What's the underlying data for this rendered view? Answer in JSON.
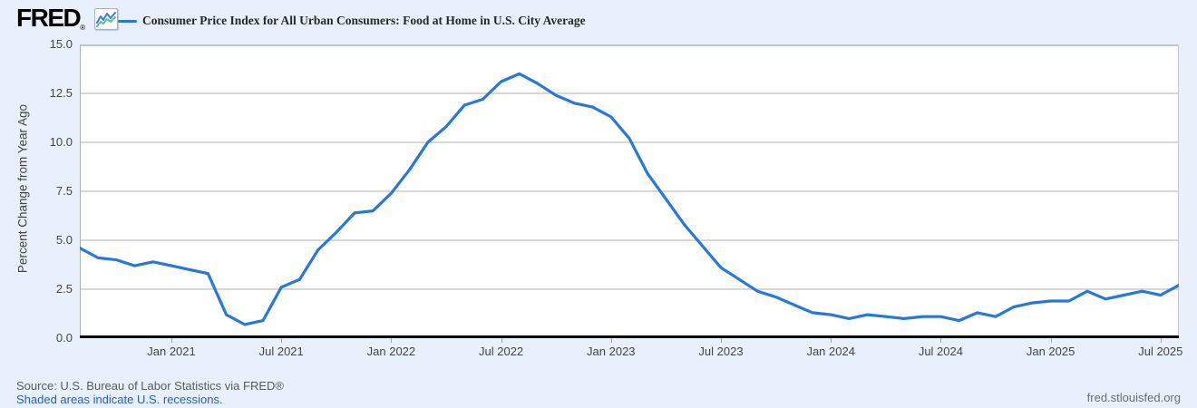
{
  "header": {
    "logo_text": "FRED",
    "logo_registered": "®",
    "legend": {
      "label": "Consumer Price Index for All Urban Consumers: Food at Home in U.S. City Average",
      "line_color": "#2878d9"
    }
  },
  "chart_data": {
    "type": "line",
    "title": "Consumer Price Index for All Urban Consumers: Food at Home in U.S. City Average",
    "ylabel": "Percent Change from Year Ago",
    "xlabel": "",
    "ylim": [
      0,
      15
    ],
    "y_ticks": [
      0.0,
      2.5,
      5.0,
      7.5,
      10.0,
      12.5,
      15.0
    ],
    "grid": true,
    "legend_position": "top-left",
    "frequency": "monthly",
    "x_start": "2020-08",
    "x_end": "2025-08",
    "x_range_months": 60,
    "x_ticks": [
      {
        "label": "Jan 2021",
        "month_index": 5
      },
      {
        "label": "Jul 2021",
        "month_index": 11
      },
      {
        "label": "Jan 2022",
        "month_index": 17
      },
      {
        "label": "Jul 2022",
        "month_index": 23
      },
      {
        "label": "Jan 2023",
        "month_index": 29
      },
      {
        "label": "Jul 2023",
        "month_index": 35
      },
      {
        "label": "Jan 2024",
        "month_index": 41
      },
      {
        "label": "Jul 2024",
        "month_index": 47
      },
      {
        "label": "Jan 2025",
        "month_index": 53
      },
      {
        "label": "Jul 2025",
        "month_index": 59
      }
    ],
    "series": [
      {
        "name": "Consumer Price Index for All Urban Consumers: Food at Home in U.S. City Average",
        "color": "#2878d9",
        "units": "Percent Change from Year Ago",
        "observations": [
          {
            "date": "2020-08",
            "value": 4.6
          },
          {
            "date": "2020-09",
            "value": 4.1
          },
          {
            "date": "2020-10",
            "value": 4.0
          },
          {
            "date": "2020-11",
            "value": 3.7
          },
          {
            "date": "2020-12",
            "value": 3.9
          },
          {
            "date": "2021-01",
            "value": 3.7
          },
          {
            "date": "2021-02",
            "value": 3.5
          },
          {
            "date": "2021-03",
            "value": 3.3
          },
          {
            "date": "2021-04",
            "value": 1.2
          },
          {
            "date": "2021-05",
            "value": 0.7
          },
          {
            "date": "2021-06",
            "value": 0.9
          },
          {
            "date": "2021-07",
            "value": 2.6
          },
          {
            "date": "2021-08",
            "value": 3.0
          },
          {
            "date": "2021-09",
            "value": 4.5
          },
          {
            "date": "2021-10",
            "value": 5.4
          },
          {
            "date": "2021-11",
            "value": 6.4
          },
          {
            "date": "2021-12",
            "value": 6.5
          },
          {
            "date": "2022-01",
            "value": 7.4
          },
          {
            "date": "2022-02",
            "value": 8.6
          },
          {
            "date": "2022-03",
            "value": 10.0
          },
          {
            "date": "2022-04",
            "value": 10.8
          },
          {
            "date": "2022-05",
            "value": 11.9
          },
          {
            "date": "2022-06",
            "value": 12.2
          },
          {
            "date": "2022-07",
            "value": 13.1
          },
          {
            "date": "2022-08",
            "value": 13.5
          },
          {
            "date": "2022-09",
            "value": 13.0
          },
          {
            "date": "2022-10",
            "value": 12.4
          },
          {
            "date": "2022-11",
            "value": 12.0
          },
          {
            "date": "2022-12",
            "value": 11.8
          },
          {
            "date": "2023-01",
            "value": 11.3
          },
          {
            "date": "2023-02",
            "value": 10.2
          },
          {
            "date": "2023-03",
            "value": 8.4
          },
          {
            "date": "2023-04",
            "value": 7.1
          },
          {
            "date": "2023-05",
            "value": 5.8
          },
          {
            "date": "2023-06",
            "value": 4.7
          },
          {
            "date": "2023-07",
            "value": 3.6
          },
          {
            "date": "2023-08",
            "value": 3.0
          },
          {
            "date": "2023-09",
            "value": 2.4
          },
          {
            "date": "2023-10",
            "value": 2.1
          },
          {
            "date": "2023-11",
            "value": 1.7
          },
          {
            "date": "2023-12",
            "value": 1.3
          },
          {
            "date": "2024-01",
            "value": 1.2
          },
          {
            "date": "2024-02",
            "value": 1.0
          },
          {
            "date": "2024-03",
            "value": 1.2
          },
          {
            "date": "2024-04",
            "value": 1.1
          },
          {
            "date": "2024-05",
            "value": 1.0
          },
          {
            "date": "2024-06",
            "value": 1.1
          },
          {
            "date": "2024-07",
            "value": 1.1
          },
          {
            "date": "2024-08",
            "value": 0.9
          },
          {
            "date": "2024-09",
            "value": 1.3
          },
          {
            "date": "2024-10",
            "value": 1.1
          },
          {
            "date": "2024-11",
            "value": 1.6
          },
          {
            "date": "2024-12",
            "value": 1.8
          },
          {
            "date": "2025-01",
            "value": 1.9
          },
          {
            "date": "2025-02",
            "value": 1.9
          },
          {
            "date": "2025-03",
            "value": 2.4
          },
          {
            "date": "2025-04",
            "value": 2.0
          },
          {
            "date": "2025-05",
            "value": 2.2
          },
          {
            "date": "2025-06",
            "value": 2.4
          },
          {
            "date": "2025-07",
            "value": 2.2
          },
          {
            "date": "2025-08",
            "value": 2.7
          }
        ]
      }
    ]
  },
  "footer": {
    "source": "Source: U.S. Bureau of Labor Statistics via FRED®",
    "recession_note": "Shaded areas indicate U.S. recessions.",
    "site_link": "fred.stlouisfed.org"
  },
  "colors": {
    "background": "#e8f1fb",
    "plot_background": "#ffffff",
    "gridline": "#cccccc",
    "plot_border_top": "#c5c5c5",
    "plot_border_left": "#b0b0b0",
    "plot_border_right": "#c5c5c5",
    "axis_line": "#000000",
    "line": "#2878d9",
    "tick_text": "#444444",
    "source_text": "#5b5b5b",
    "link": "#2a5db4",
    "icon_line_blue": "#3b7bd8",
    "icon_line_green": "#5cbd8e"
  }
}
